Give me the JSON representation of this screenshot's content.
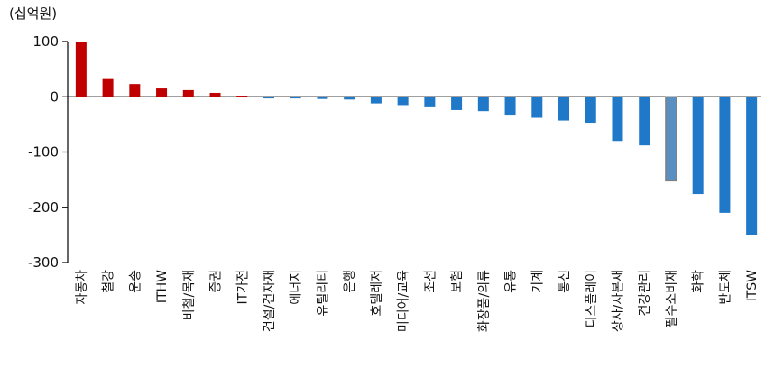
{
  "chart_data": {
    "type": "bar",
    "unit": "(십억원)",
    "ylim": [
      -300,
      100
    ],
    "yticks": [
      100,
      0,
      -100,
      -200,
      -300
    ],
    "grid": false,
    "categories": [
      "자동차",
      "철강",
      "운송",
      "ITHW",
      "비철/목재",
      "증권",
      "IT가전",
      "건설/건자재",
      "에너지",
      "유틸리티",
      "은행",
      "호텔레저",
      "미디어/교육",
      "조선",
      "보험",
      "화장품/의류",
      "유통",
      "기계",
      "통신",
      "디스플레이",
      "상사/자본재",
      "건강관리",
      "필수소비재",
      "화학",
      "반도체",
      "ITSW"
    ],
    "values": [
      100,
      32,
      23,
      15,
      12,
      7,
      2,
      -3,
      -3,
      -4,
      -5,
      -12,
      -15,
      -19,
      -24,
      -26,
      -34,
      -38,
      -43,
      -47,
      -80,
      -88,
      -152,
      -176,
      -210,
      -250
    ],
    "colors": {
      "positive": "#C00000",
      "negative": "#1F78C8",
      "highlight": "#5A8FC2"
    },
    "highlight_index": 22
  }
}
